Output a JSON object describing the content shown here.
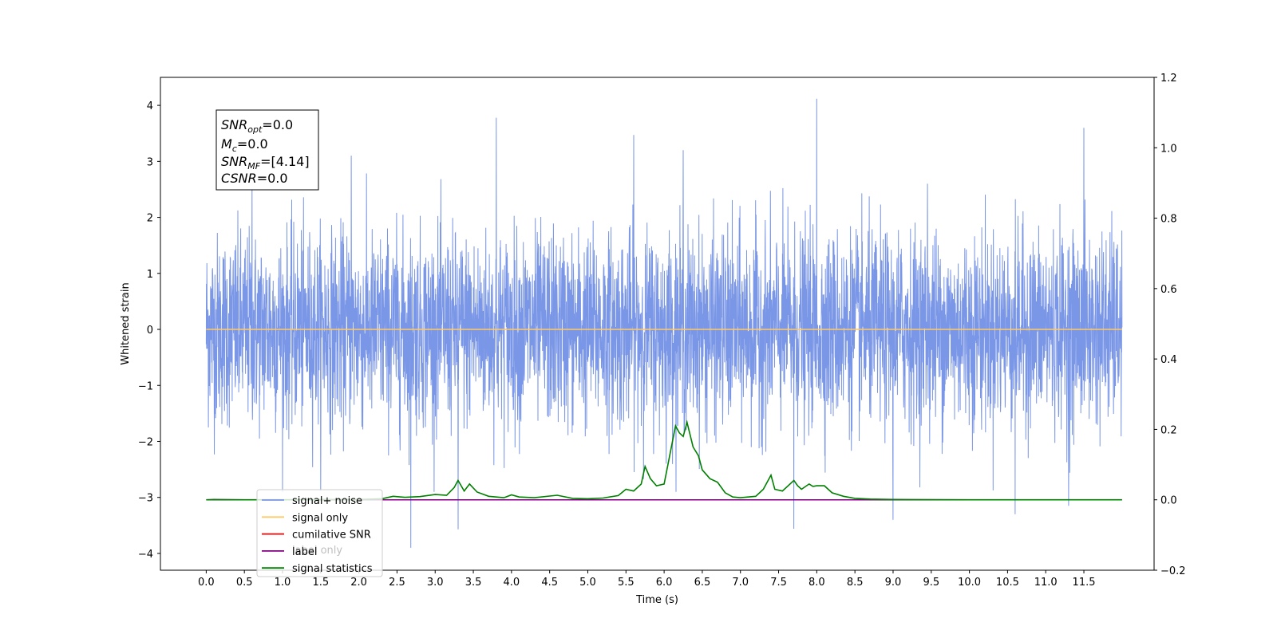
{
  "chart_data": {
    "type": "line",
    "xlabel": "Time (s)",
    "ylabel": "Whitened strain",
    "xlim": [
      -0.6,
      12.42
    ],
    "ylim": [
      -4.3,
      4.5
    ],
    "y2lim": [
      -0.2,
      1.2
    ],
    "x_ticks": [
      "0.0",
      "0.5",
      "1.0",
      "1.5",
      "2.0",
      "2.5",
      "3.0",
      "3.5",
      "4.0",
      "4.5",
      "5.0",
      "5.5",
      "6.0",
      "6.5",
      "7.0",
      "7.5",
      "8.0",
      "8.5",
      "9.0",
      "9.5",
      "10.0",
      "10.5",
      "11.0",
      "11.5"
    ],
    "y_ticks": [
      "4",
      "3",
      "2",
      "1",
      "0",
      "−1",
      "−2",
      "−3",
      "−4"
    ],
    "y2_ticks": [
      "1.2",
      "1.0",
      "0.8",
      "0.6",
      "0.4",
      "0.2",
      "0.0",
      "−0.2"
    ],
    "info_box": {
      "snr_opt": {
        "main": "SNR",
        "sub": "opt",
        "value": "=0.0"
      },
      "mc": {
        "main": "M",
        "sub": "c",
        "value": "=0.0"
      },
      "snr_mf": {
        "main": "SNR",
        "sub": "MF",
        "value": "=[4.14]"
      },
      "csnr": {
        "main": "CSNR",
        "value": "=0.0"
      }
    },
    "legend": {
      "placement": "lower-left",
      "entries": [
        {
          "label": "signal+ noise",
          "color": "#7a96e6"
        },
        {
          "label": "signal only",
          "color": "#ffc966"
        },
        {
          "label": "cumilative SNR",
          "color": "#ff0000"
        },
        {
          "label": "label",
          "color": "#800080"
        },
        {
          "label": "signal statistics",
          "color": "#008000"
        }
      ],
      "hidden_label": "label only"
    },
    "series": [
      {
        "name": "signal+ noise",
        "axis": "left",
        "x_range": [
          0.0,
          12.0
        ],
        "amplitude_range": [
          -3.9,
          4.12
        ],
        "notable_peaks": [
          [
            0.6,
            2.8
          ],
          [
            1.9,
            3.1
          ],
          [
            3.8,
            3.78
          ],
          [
            5.6,
            3.47
          ],
          [
            6.25,
            3.2
          ],
          [
            8.0,
            4.12
          ],
          [
            9.45,
            2.6
          ],
          [
            11.3,
            3.62
          ],
          [
            11.5,
            3.6
          ]
        ],
        "notable_troughs": [
          [
            2.68,
            -3.9
          ],
          [
            3.3,
            -3.57
          ],
          [
            7.7,
            -3.56
          ],
          [
            9.0,
            -3.4
          ],
          [
            10.6,
            -3.3
          ],
          [
            11.3,
            -3.15
          ]
        ]
      },
      {
        "name": "signal only",
        "axis": "left",
        "x": [
          0.0,
          12.0
        ],
        "y": [
          0.0,
          0.0
        ]
      },
      {
        "name": "label",
        "axis": "right",
        "x": [
          0.0,
          12.0
        ],
        "y": [
          0.0,
          0.0
        ]
      },
      {
        "name": "signal statistics",
        "axis": "right",
        "x": [
          0.0,
          0.1,
          0.5,
          1.0,
          1.5,
          2.0,
          2.3,
          2.45,
          2.6,
          2.8,
          3.0,
          3.15,
          3.25,
          3.3,
          3.38,
          3.45,
          3.55,
          3.7,
          3.9,
          4.0,
          4.1,
          4.3,
          4.6,
          4.8,
          5.0,
          5.2,
          5.4,
          5.5,
          5.6,
          5.7,
          5.75,
          5.82,
          5.9,
          6.0,
          6.15,
          6.2,
          6.25,
          6.3,
          6.38,
          6.45,
          6.5,
          6.6,
          6.7,
          6.8,
          6.9,
          7.0,
          7.2,
          7.3,
          7.4,
          7.45,
          7.55,
          7.7,
          7.75,
          7.8,
          7.9,
          7.95,
          8.0,
          8.1,
          8.2,
          8.35,
          8.5,
          8.7,
          9.0,
          10.0,
          12.0
        ],
        "y": [
          0.0,
          0.001,
          0.0,
          0.0,
          0.001,
          0.001,
          0.003,
          0.01,
          0.007,
          0.009,
          0.015,
          0.013,
          0.035,
          0.055,
          0.025,
          0.045,
          0.022,
          0.01,
          0.006,
          0.014,
          0.008,
          0.006,
          0.013,
          0.004,
          0.003,
          0.005,
          0.012,
          0.03,
          0.025,
          0.045,
          0.095,
          0.06,
          0.04,
          0.045,
          0.21,
          0.19,
          0.18,
          0.22,
          0.15,
          0.125,
          0.085,
          0.06,
          0.05,
          0.02,
          0.008,
          0.006,
          0.01,
          0.03,
          0.07,
          0.03,
          0.025,
          0.055,
          0.04,
          0.03,
          0.045,
          0.038,
          0.04,
          0.04,
          0.02,
          0.01,
          0.004,
          0.002,
          0.001,
          0.0,
          0.0
        ]
      }
    ]
  }
}
